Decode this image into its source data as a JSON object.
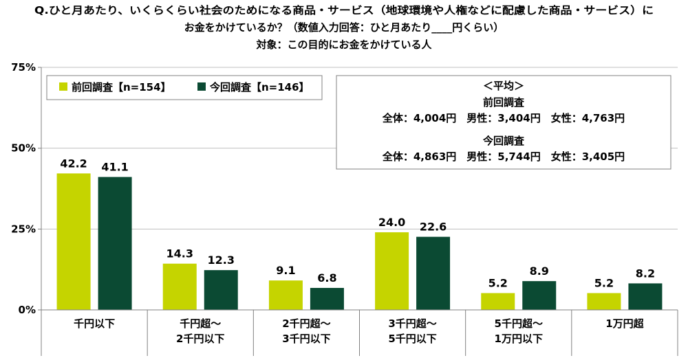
{
  "title_lines": [
    "Q.ひと月あたり、いくらくらい社会のためになる商品・サービス（地球環境や人権などに配慮した商品・サービス）に",
    "お金をかけているか？（数値入力回答：ひと月あたり____円くらい）",
    "対象：この目的にお金をかけている人"
  ],
  "chart_data": {
    "type": "bar",
    "categories": [
      [
        "千円以下"
      ],
      [
        "千円超～",
        "2千円以下"
      ],
      [
        "2千円超～",
        "3千円以下"
      ],
      [
        "3千円超～",
        "5千円以下"
      ],
      [
        "5千円超～",
        "1万円以下"
      ],
      [
        "1万円超"
      ]
    ],
    "series": [
      {
        "name": "前回調査【n=154】",
        "color": "#c5d400",
        "values": [
          42.2,
          14.3,
          9.1,
          24.0,
          5.2,
          5.2
        ]
      },
      {
        "name": "今回調査【n=146】",
        "color": "#0b4a33",
        "values": [
          41.1,
          12.3,
          6.8,
          22.6,
          8.9,
          8.2
        ]
      }
    ],
    "ylim": [
      0,
      75
    ],
    "yticks": [
      0,
      25,
      50,
      75
    ],
    "ytick_labels": [
      "0%",
      "25%",
      "50%",
      "75%"
    ],
    "grid": true,
    "legend_position": "top-left",
    "value_labels": [
      "42.2",
      "14.3",
      "9.1",
      "24.0",
      "5.2",
      "5.2",
      "41.1",
      "12.3",
      "6.8",
      "22.6",
      "8.9",
      "8.2"
    ]
  },
  "averages_box": {
    "heading": "＜平均＞",
    "groups": [
      {
        "label": "前回調査",
        "line": "全体：4,004円　男性：3,404円　女性：4,763円"
      },
      {
        "label": "今回調査",
        "line": "全体：4,863円　男性：5,744円　女性：3,405円"
      }
    ]
  }
}
